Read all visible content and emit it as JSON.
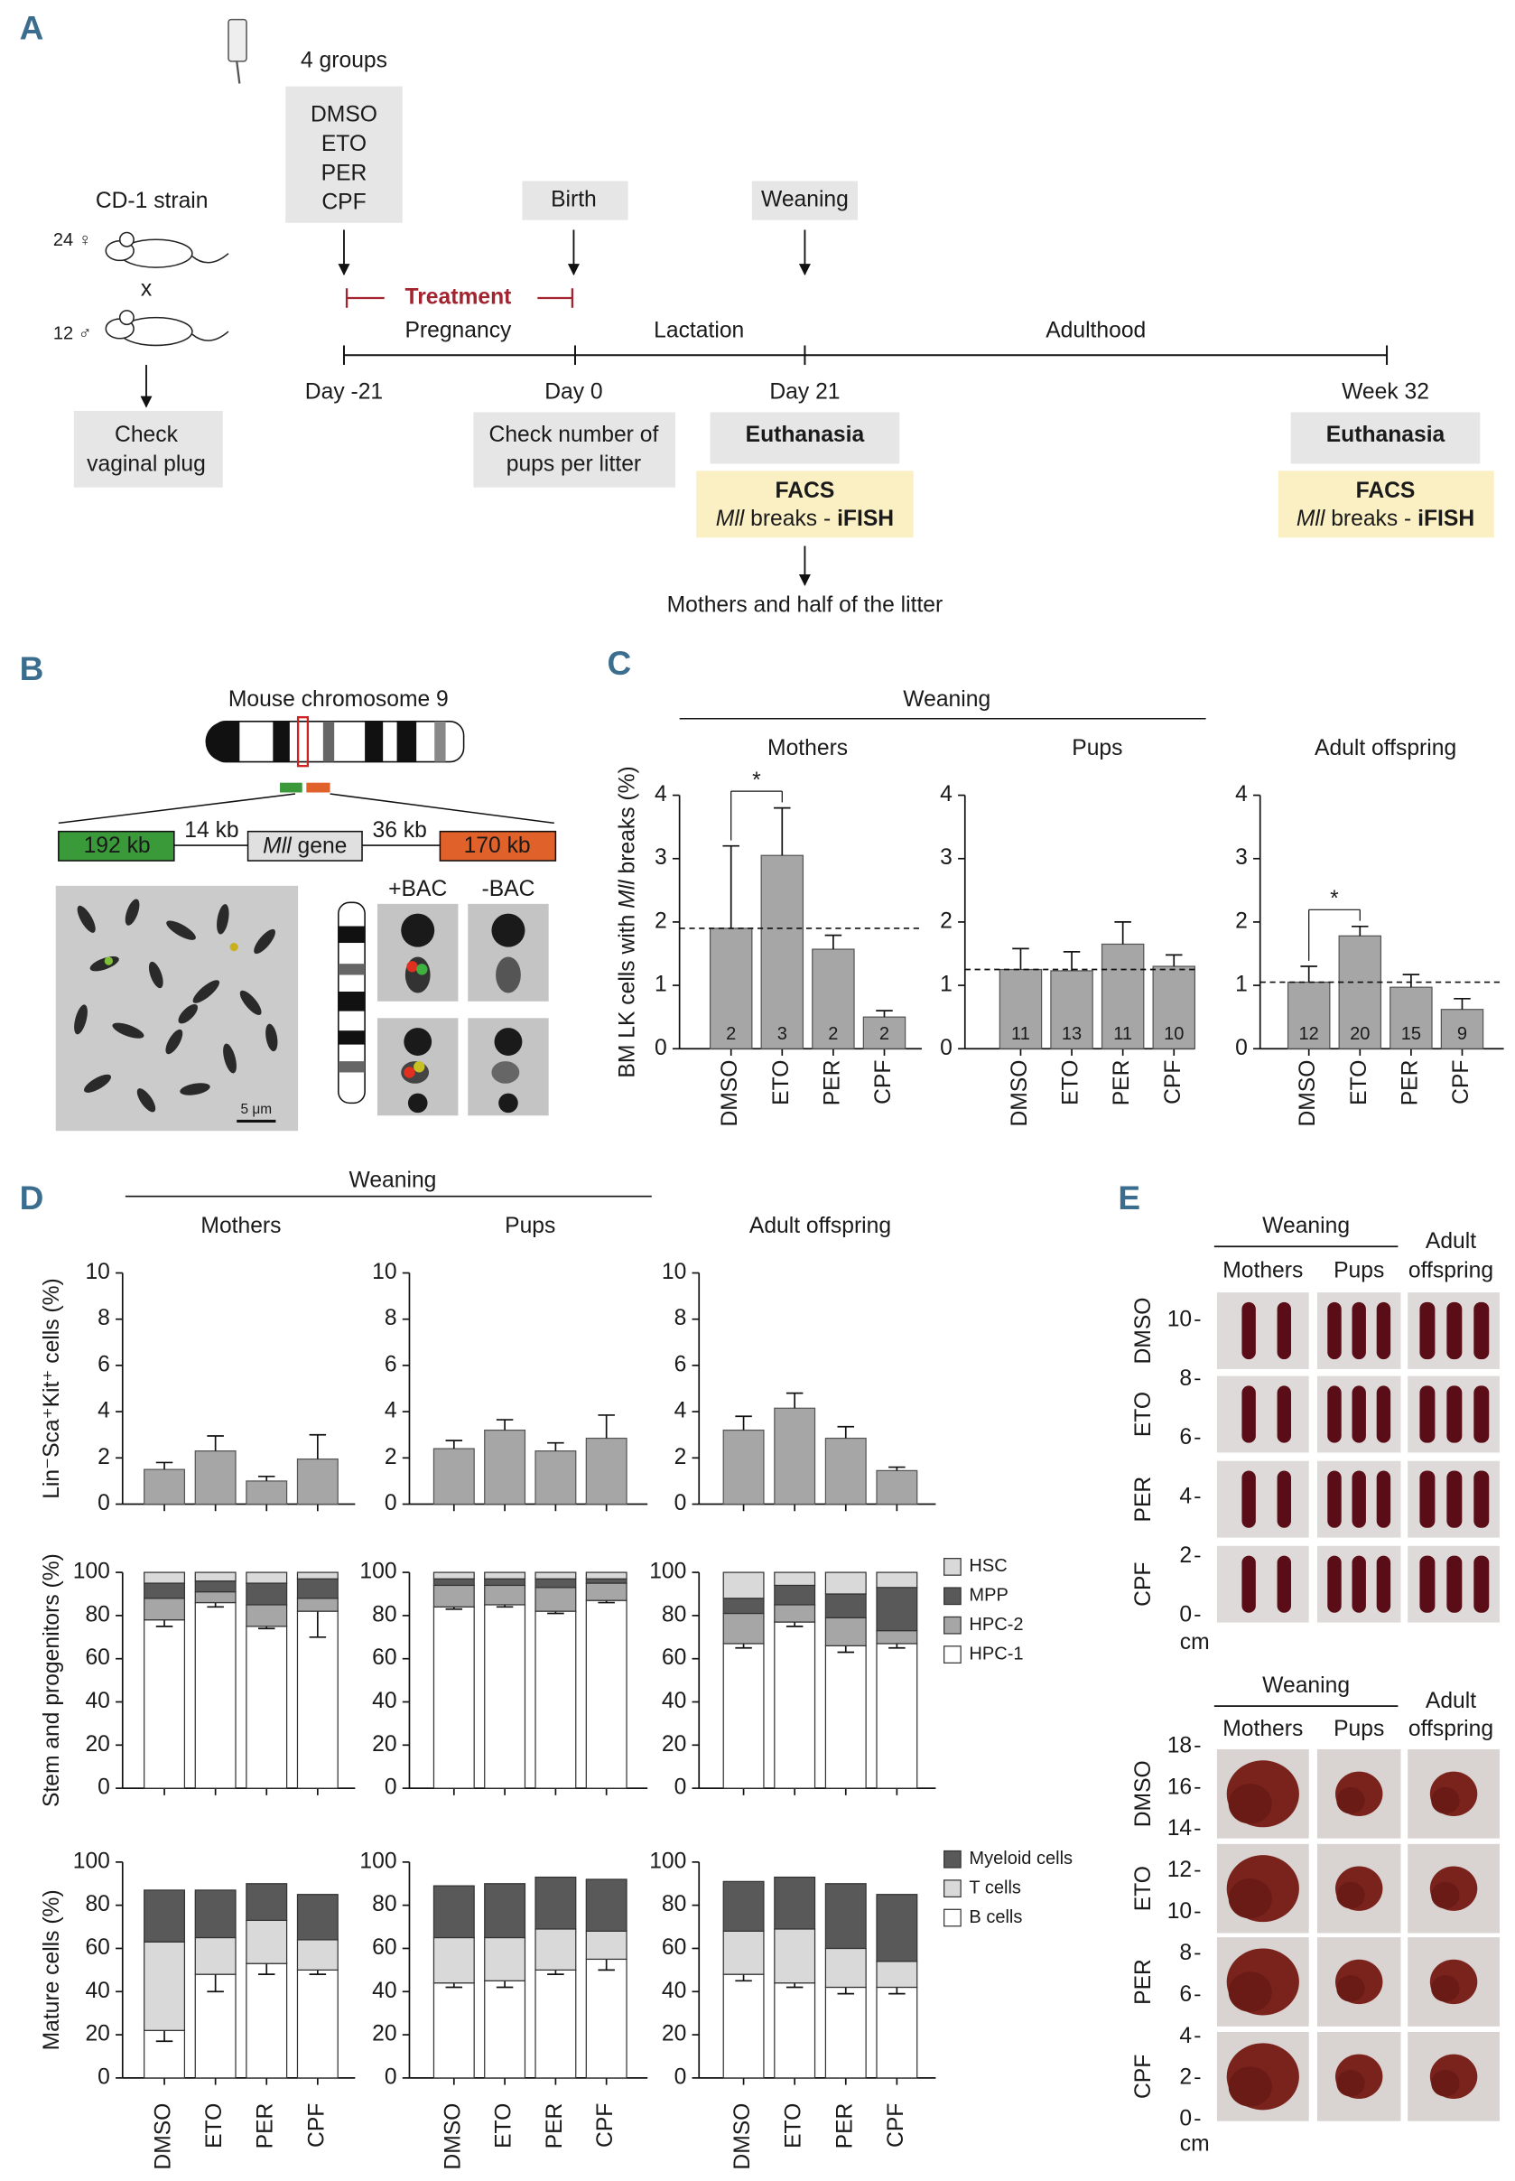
{
  "panel_labels": [
    "A",
    "B",
    "C",
    "D",
    "E"
  ],
  "panel_a": {
    "groups_title": "4 groups",
    "groups": [
      "DMSO",
      "ETO",
      "PER",
      "CPF"
    ],
    "strain": "CD-1 strain",
    "females": "24 ♀",
    "cross": "x",
    "males": "12 ♂",
    "check_plug": [
      "Check",
      "vaginal plug"
    ],
    "birth": "Birth",
    "weaning": "Weaning",
    "treatment": "Treatment",
    "phases": [
      "Pregnancy",
      "Lactation",
      "Adulthood"
    ],
    "timepoints": [
      "Day -21",
      "Day 0",
      "Day 21",
      "Week 32"
    ],
    "check_pups": [
      "Check number of",
      "pups per litter"
    ],
    "endpoints": [
      {
        "euthanasia": "Euthanasia",
        "facs": "FACS",
        "gene": "Mll",
        "breaks": "breaks -",
        "method": "iFISH"
      },
      {
        "euthanasia": "Euthanasia",
        "facs": "FACS",
        "gene": "Mll",
        "breaks": "breaks -",
        "method": "iFISH"
      }
    ],
    "outcome": "Mothers and half of the litter"
  },
  "panel_b": {
    "title": "Mouse chromosome 9",
    "left_bac": "192 kb",
    "left_gap": "14 kb",
    "gene": "Mll",
    "gene_suffix": "gene",
    "right_gap": "36 kb",
    "right_bac": "170 kb",
    "plus": "+BAC",
    "minus": "-BAC",
    "scale": "5 μm"
  },
  "panel_c": {
    "header": "Weaning"
  },
  "panel_d": {
    "header": "Weaning"
  },
  "chart_data": [
    {
      "type": "bar",
      "title": "Mothers",
      "ylabel": [
        "BM LK cells with",
        "Mll",
        "breaks (%)"
      ],
      "categories": [
        "DMSO",
        "ETO",
        "PER",
        "CPF"
      ],
      "values": [
        1.9,
        3.05,
        1.57,
        0.5
      ],
      "errors": [
        1.3,
        0.75,
        0.22,
        0.1
      ],
      "n": [
        2,
        3,
        2,
        2
      ],
      "reference": 1.9,
      "annotation": "*",
      "ylim": [
        0,
        4
      ],
      "yticks": [
        0,
        1,
        2,
        3,
        4
      ],
      "color": "#a6a6a6"
    },
    {
      "type": "bar",
      "title": "Pups",
      "categories": [
        "DMSO",
        "ETO",
        "PER",
        "CPF"
      ],
      "values": [
        1.25,
        1.23,
        1.65,
        1.3
      ],
      "errors": [
        0.33,
        0.3,
        0.35,
        0.18
      ],
      "n": [
        11,
        13,
        11,
        10
      ],
      "reference": 1.25,
      "ylim": [
        0,
        4
      ],
      "yticks": [
        0,
        1,
        2,
        3,
        4
      ],
      "color": "#a6a6a6"
    },
    {
      "type": "bar",
      "title": "Adult offspring",
      "categories": [
        "DMSO",
        "ETO",
        "PER",
        "CPF"
      ],
      "values": [
        1.05,
        1.78,
        0.97,
        0.62
      ],
      "errors": [
        0.25,
        0.15,
        0.2,
        0.17
      ],
      "n": [
        12,
        20,
        15,
        9
      ],
      "reference": 1.05,
      "annotation": "*",
      "ylim": [
        0,
        4
      ],
      "yticks": [
        0,
        1,
        2,
        3,
        4
      ],
      "color": "#a6a6a6"
    },
    {
      "type": "bar",
      "title": "Mothers",
      "ylabel": "Lin⁻Sca⁺Kit⁺ cells (%)",
      "categories": [
        null,
        null,
        null,
        null
      ],
      "values": [
        1.5,
        2.3,
        1.0,
        1.95
      ],
      "errors": [
        0.3,
        0.65,
        0.2,
        1.05
      ],
      "ylim": [
        0,
        10
      ],
      "yticks": [
        0,
        2,
        4,
        6,
        8,
        10
      ],
      "color": "#a6a6a6"
    },
    {
      "type": "bar",
      "title": "Pups",
      "categories": [
        null,
        null,
        null,
        null
      ],
      "values": [
        2.4,
        3.2,
        2.3,
        2.85
      ],
      "errors": [
        0.35,
        0.45,
        0.35,
        1.0
      ],
      "ylim": [
        0,
        10
      ],
      "yticks": [
        0,
        2,
        4,
        6,
        8,
        10
      ],
      "color": "#a6a6a6"
    },
    {
      "type": "bar",
      "title": "Adult offspring",
      "categories": [
        null,
        null,
        null,
        null
      ],
      "values": [
        3.2,
        4.15,
        2.85,
        1.45
      ],
      "errors": [
        0.6,
        0.65,
        0.5,
        0.15
      ],
      "ylim": [
        0,
        10
      ],
      "yticks": [
        0,
        2,
        4,
        6,
        8,
        10
      ],
      "color": "#a6a6a6"
    },
    {
      "type": "stacked_bar",
      "ylabel": "Stem and progenitors (%)",
      "categories": [
        null,
        null,
        null,
        null
      ],
      "series": [
        {
          "color": "#ffffff",
          "values": [
            78,
            86,
            75,
            82
          ],
          "errors": [
            3,
            2,
            1,
            12
          ]
        },
        {
          "color": "#a6a6a6",
          "values": [
            10,
            5,
            10,
            6
          ]
        },
        {
          "color": "#595959",
          "values": [
            7,
            5,
            10,
            9
          ]
        },
        {
          "color": "#d9d9d9",
          "values": [
            5,
            4,
            5,
            3
          ]
        }
      ],
      "ylim": [
        0,
        100
      ],
      "yticks": [
        0,
        20,
        40,
        60,
        80,
        100
      ]
    },
    {
      "type": "stacked_bar",
      "categories": [
        null,
        null,
        null,
        null
      ],
      "series": [
        {
          "color": "#ffffff",
          "values": [
            84,
            85,
            82,
            87
          ],
          "errors": [
            1,
            1,
            1,
            1
          ]
        },
        {
          "color": "#a6a6a6",
          "values": [
            10,
            9,
            11,
            8
          ]
        },
        {
          "color": "#595959",
          "values": [
            3,
            3,
            4,
            2
          ]
        },
        {
          "color": "#d9d9d9",
          "values": [
            3,
            3,
            3,
            3
          ]
        }
      ],
      "ylim": [
        0,
        100
      ],
      "yticks": [
        0,
        20,
        40,
        60,
        80,
        100
      ]
    },
    {
      "type": "stacked_bar",
      "categories": [
        null,
        null,
        null,
        null
      ],
      "series": [
        {
          "name": "HPC-1",
          "color": "#ffffff",
          "values": [
            67,
            77,
            66,
            67
          ],
          "errors": [
            2,
            2,
            3,
            2
          ]
        },
        {
          "name": "HPC-2",
          "color": "#a6a6a6",
          "values": [
            14,
            8,
            13,
            6
          ]
        },
        {
          "name": "MPP",
          "color": "#595959",
          "values": [
            7,
            9,
            11,
            20
          ]
        },
        {
          "name": "HSC",
          "color": "#d9d9d9",
          "values": [
            12,
            6,
            10,
            7
          ]
        }
      ],
      "ylim": [
        0,
        100
      ],
      "yticks": [
        0,
        20,
        40,
        60,
        80,
        100
      ],
      "legend": "right"
    },
    {
      "type": "stacked_bar",
      "ylabel": "Mature cells (%)",
      "categories": [
        "DMSO",
        "ETO",
        "PER",
        "CPF"
      ],
      "series": [
        {
          "color": "#ffffff",
          "values": [
            22,
            48,
            53,
            50
          ],
          "errors": [
            5,
            8,
            5,
            2
          ]
        },
        {
          "color": "#d9d9d9",
          "values": [
            41,
            17,
            20,
            14
          ]
        },
        {
          "color": "#595959",
          "values": [
            24,
            22,
            17,
            21
          ]
        }
      ],
      "ylim": [
        0,
        100
      ],
      "yticks": [
        0,
        20,
        40,
        60,
        80,
        100
      ]
    },
    {
      "type": "stacked_bar",
      "categories": [
        "DMSO",
        "ETO",
        "PER",
        "CPF"
      ],
      "series": [
        {
          "color": "#ffffff",
          "values": [
            44,
            45,
            50,
            55
          ],
          "errors": [
            2,
            3,
            2,
            5
          ]
        },
        {
          "color": "#d9d9d9",
          "values": [
            21,
            20,
            19,
            13
          ]
        },
        {
          "color": "#595959",
          "values": [
            24,
            25,
            24,
            24
          ]
        }
      ],
      "ylim": [
        0,
        100
      ],
      "yticks": [
        0,
        20,
        40,
        60,
        80,
        100
      ]
    },
    {
      "type": "stacked_bar",
      "categories": [
        "DMSO",
        "ETO",
        "PER",
        "CPF"
      ],
      "series": [
        {
          "name": "B cells",
          "color": "#ffffff",
          "values": [
            48,
            44,
            42,
            42
          ],
          "errors": [
            3,
            2,
            3,
            3
          ]
        },
        {
          "name": "T cells",
          "color": "#d9d9d9",
          "values": [
            20,
            25,
            18,
            12
          ]
        },
        {
          "name": "Myeloid cells",
          "color": "#595959",
          "values": [
            23,
            24,
            30,
            31
          ]
        }
      ],
      "ylim": [
        0,
        100
      ],
      "yticks": [
        0,
        20,
        40,
        60,
        80,
        100
      ],
      "legend": "right"
    }
  ],
  "panel_e": {
    "groups": [
      {
        "header": "Weaning",
        "columns": [
          "Mothers",
          "Pups"
        ],
        "adult": [
          "Adult",
          "offspring"
        ],
        "rows": [
          "DMSO",
          "ETO",
          "PER",
          "CPF"
        ],
        "ylim": [
          0,
          10
        ],
        "yticks": [
          0,
          2,
          4,
          6,
          8,
          10
        ],
        "unit": "cm"
      },
      {
        "header": "Weaning",
        "columns": [
          "Mothers",
          "Pups"
        ],
        "adult": [
          "Adult",
          "offspring"
        ],
        "rows": [
          "DMSO",
          "ETO",
          "PER",
          "CPF"
        ],
        "ylim": [
          0,
          18
        ],
        "yticks": [
          0,
          2,
          4,
          6,
          8,
          10,
          12,
          14,
          16,
          18
        ],
        "unit": "cm"
      }
    ]
  }
}
